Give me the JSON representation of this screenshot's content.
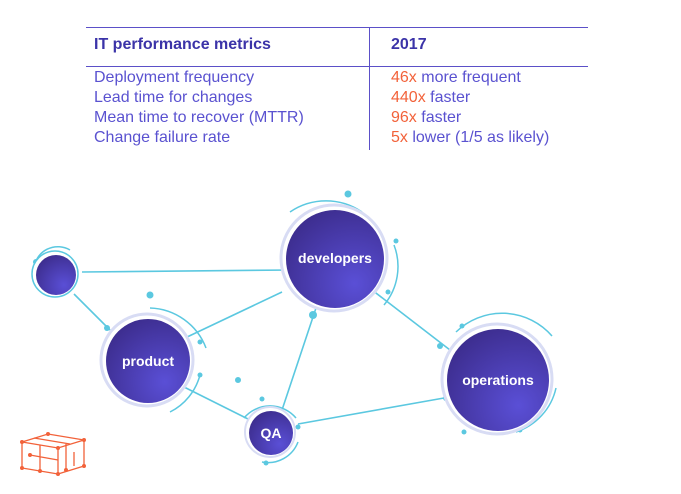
{
  "table": {
    "header_metric": "IT performance metrics",
    "header_year": "2017",
    "rows": [
      {
        "metric": "Deployment frequency",
        "value_num": "46x",
        "value_rest": " more frequent"
      },
      {
        "metric": "Lead time for changes",
        "value_num": "440x",
        "value_rest": " faster"
      },
      {
        "metric": "Mean time to recover (MTTR)",
        "value_num": "96x",
        "value_rest": " faster"
      },
      {
        "metric": "Change failure rate",
        "value_num": "5x",
        "value_rest": " lower (1/5 as likely)"
      }
    ]
  },
  "nodes": {
    "developers": "developers",
    "product": "product",
    "qa": "QA",
    "operations": "operations"
  },
  "colors": {
    "accent_orange": "#f2623a",
    "text_purple": "#5a52d0",
    "line_cyan": "#5bc8e0",
    "node_dark": "#3a2a88",
    "node_light": "#5a4fd6"
  }
}
